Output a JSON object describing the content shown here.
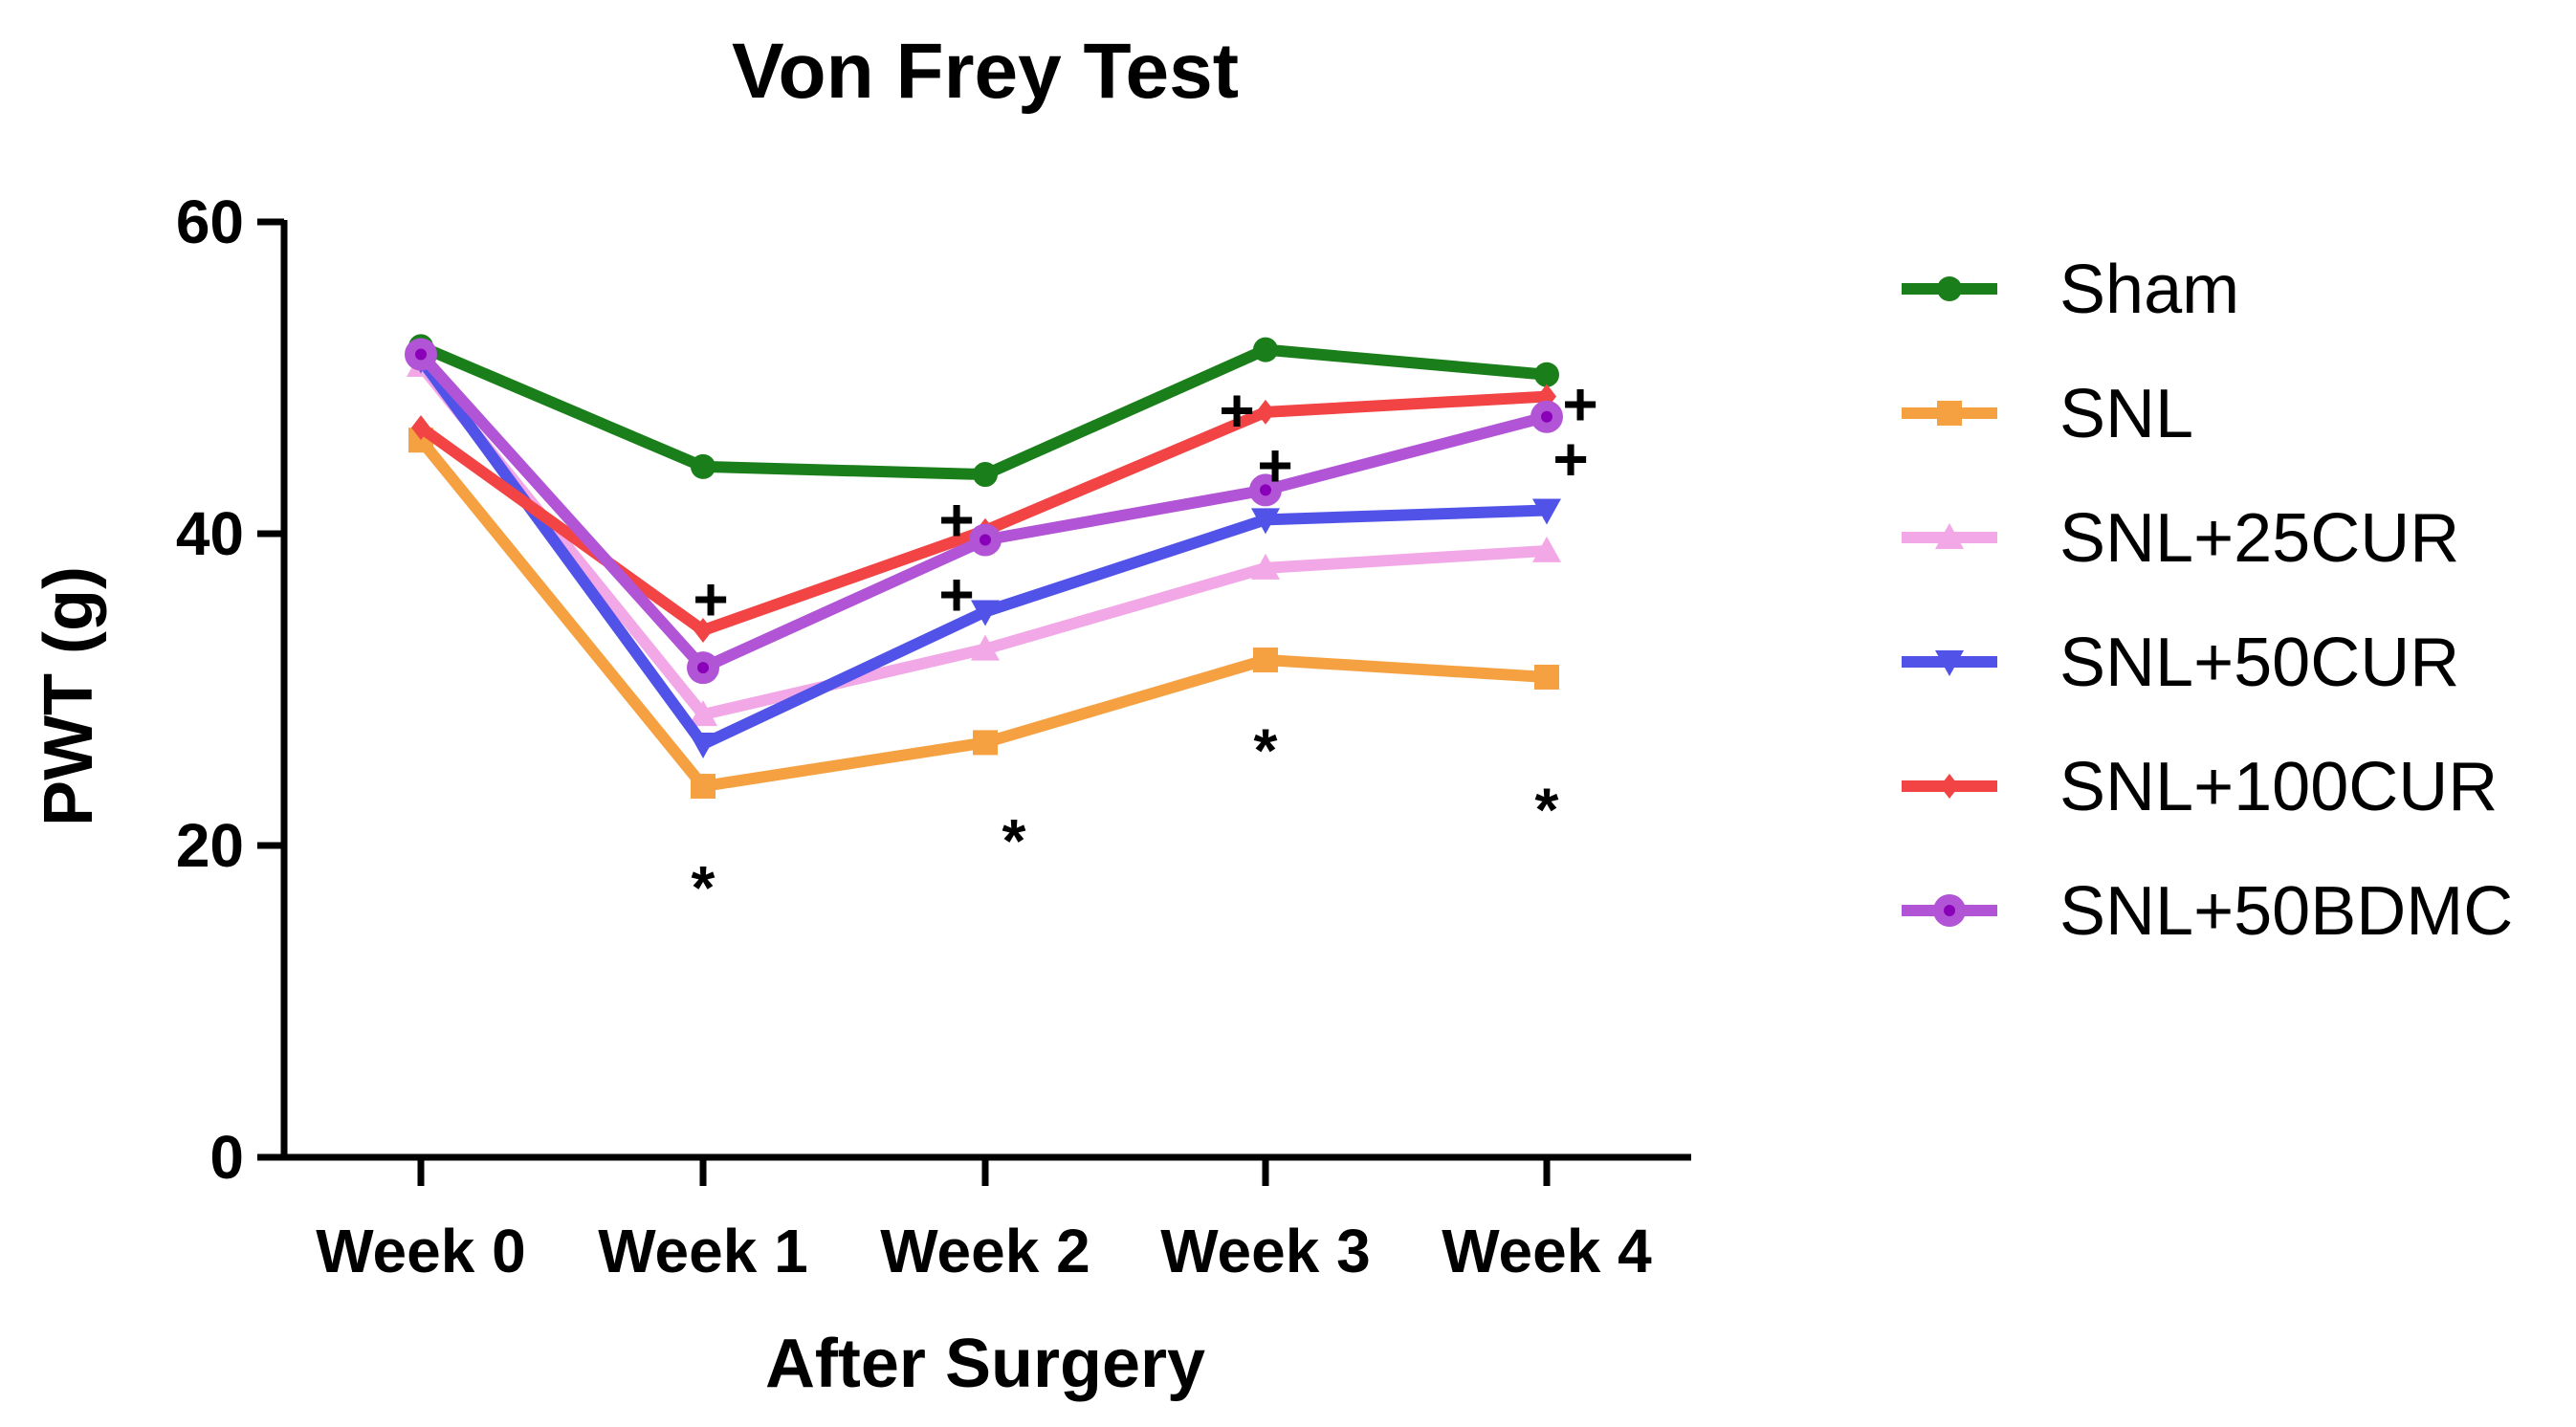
{
  "chart_data": {
    "type": "line",
    "title": "Von Frey Test",
    "xlabel": "After Surgery",
    "ylabel": "PWT (g)",
    "ylim": [
      0,
      60
    ],
    "yticks": [
      0,
      20,
      40,
      60
    ],
    "categories": [
      "Week 0",
      "Week 1",
      "Week 2",
      "Week 3",
      "Week 4"
    ],
    "legend_position": "right",
    "series": [
      {
        "name": "Sham",
        "color": "#1a7f1a",
        "marker": "circle",
        "values": [
          52.0,
          44.3,
          43.8,
          51.8,
          50.2
        ]
      },
      {
        "name": "SNL",
        "color": "#f5a142",
        "marker": "square",
        "values": [
          46.0,
          23.8,
          26.6,
          31.9,
          30.8
        ]
      },
      {
        "name": "SNL+25CUR",
        "color": "#f2a7e6",
        "marker": "triangle-up",
        "values": [
          50.8,
          28.4,
          32.6,
          37.8,
          38.9
        ]
      },
      {
        "name": "SNL+50CUR",
        "color": "#5153e8",
        "marker": "triangle-down",
        "values": [
          51.2,
          26.5,
          35.0,
          40.9,
          41.5
        ]
      },
      {
        "name": "SNL+100CUR",
        "color": "#f24444",
        "marker": "diamond",
        "values": [
          46.8,
          33.8,
          40.2,
          47.8,
          48.8
        ]
      },
      {
        "name": "SNL+50BDMC",
        "color": "#b254d6",
        "marker": "circle-dot",
        "values": [
          51.5,
          31.4,
          39.6,
          42.8,
          47.5
        ]
      }
    ],
    "annotations": [
      {
        "text": "*",
        "category": "Week 1",
        "y": 17.3
      },
      {
        "text": "*",
        "category": "Week 2",
        "y": 20.3
      },
      {
        "text": "*",
        "category": "Week 3",
        "y": 26.1
      },
      {
        "text": "*",
        "category": "Week 4",
        "y": 22.3
      },
      {
        "text": "+",
        "category": "Week 1",
        "y": 35.8
      },
      {
        "text": "+",
        "category": "Week 2",
        "y": 40.9
      },
      {
        "text": "+",
        "category": "Week 2",
        "y": 36.1
      },
      {
        "text": "+",
        "category": "Week 3",
        "y": 47.9
      },
      {
        "text": "+",
        "category": "Week 3",
        "y": 44.4
      },
      {
        "text": "+",
        "category": "Week 4",
        "y": 48.3
      },
      {
        "text": "+",
        "category": "Week 4",
        "y": 44.8
      }
    ]
  }
}
